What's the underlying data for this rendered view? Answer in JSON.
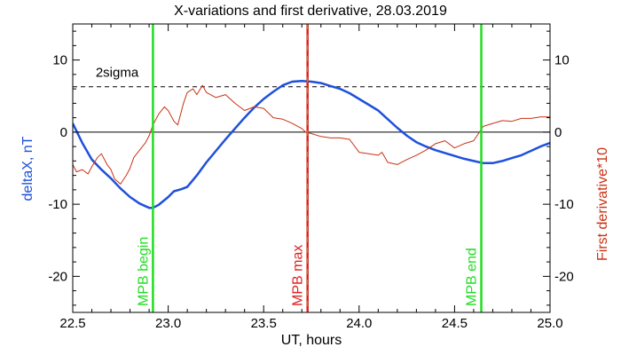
{
  "chart_data": {
    "type": "line",
    "title": "X-variations and first derivative, 28.03.2019",
    "xlabel": "UT, hours",
    "ylabel_left": "deltaX, nT",
    "ylabel_right": "First derivative*10",
    "xlim": [
      22.5,
      25.0
    ],
    "ylim": [
      -25,
      15
    ],
    "xticks": [
      "22.5",
      "23.0",
      "23.5",
      "24.0",
      "24.5",
      "25.0"
    ],
    "yticks_left": [
      "10",
      "0",
      "-10",
      "-20"
    ],
    "yticks_right": [
      "10",
      "0",
      "-10",
      "-20"
    ],
    "threshold": {
      "label": "2sigma",
      "value": 6.3
    },
    "zero_line": 0,
    "series": [
      {
        "color": "#1e50dc",
        "x": [
          22.5,
          22.55,
          22.6,
          22.65,
          22.7,
          22.75,
          22.8,
          22.85,
          22.9,
          22.92,
          22.95,
          23.0,
          23.03,
          23.07,
          23.1,
          23.15,
          23.2,
          23.25,
          23.3,
          23.35,
          23.4,
          23.45,
          23.5,
          23.55,
          23.6,
          23.65,
          23.7,
          23.75,
          23.8,
          23.85,
          23.9,
          23.95,
          24.0,
          24.05,
          24.1,
          24.15,
          24.2,
          24.25,
          24.3,
          24.35,
          24.4,
          24.45,
          24.5,
          24.55,
          24.6,
          24.65,
          24.7,
          24.75,
          24.8,
          24.85,
          24.9,
          24.95,
          25.0
        ],
        "values": [
          1.2,
          -1.5,
          -3.8,
          -5.2,
          -6.4,
          -7.8,
          -9.0,
          -9.9,
          -10.5,
          -10.5,
          -10.1,
          -9.0,
          -8.2,
          -7.9,
          -7.6,
          -6.0,
          -4.2,
          -2.6,
          -1.0,
          0.5,
          2.0,
          3.4,
          4.6,
          5.6,
          6.5,
          7.0,
          7.1,
          7.0,
          6.8,
          6.4,
          6.0,
          5.4,
          4.6,
          3.8,
          3.0,
          1.8,
          0.6,
          -0.5,
          -1.4,
          -2.0,
          -2.5,
          -2.9,
          -3.3,
          -3.7,
          -4.0,
          -4.3,
          -4.3,
          -4.0,
          -3.6,
          -3.2,
          -2.6,
          -2.0,
          -1.5
        ]
      },
      {
        "color": "#c83214",
        "x": [
          22.5,
          22.52,
          22.55,
          22.58,
          22.6,
          22.63,
          22.65,
          22.68,
          22.7,
          22.72,
          22.75,
          22.78,
          22.8,
          22.82,
          22.85,
          22.88,
          22.9,
          22.92,
          22.95,
          22.98,
          23.0,
          23.03,
          23.05,
          23.08,
          23.1,
          23.13,
          23.15,
          23.18,
          23.2,
          23.25,
          23.3,
          23.35,
          23.4,
          23.45,
          23.5,
          23.55,
          23.6,
          23.65,
          23.7,
          23.72,
          23.75,
          23.8,
          23.85,
          23.9,
          23.95,
          24.0,
          24.05,
          24.1,
          24.12,
          24.15,
          24.2,
          24.25,
          24.3,
          24.35,
          24.4,
          24.45,
          24.5,
          24.55,
          24.6,
          24.65,
          24.7,
          24.75,
          24.8,
          24.85,
          24.9,
          24.95,
          25.0
        ],
        "values": [
          -4.5,
          -5.5,
          -5.2,
          -5.8,
          -4.8,
          -3.5,
          -3.0,
          -4.5,
          -5.2,
          -6.5,
          -7.2,
          -6.0,
          -5.0,
          -3.5,
          -2.5,
          -1.5,
          -0.5,
          1.0,
          2.5,
          3.5,
          3.0,
          1.5,
          1.0,
          4.0,
          5.5,
          6.0,
          5.2,
          6.5,
          5.5,
          4.8,
          5.2,
          4.0,
          3.0,
          3.5,
          3.3,
          2.0,
          1.8,
          1.2,
          0.5,
          0.0,
          -0.2,
          -0.6,
          -0.8,
          -0.8,
          -1.0,
          -2.8,
          -3.0,
          -3.2,
          -2.8,
          -4.2,
          -4.5,
          -3.8,
          -3.2,
          -2.5,
          -1.6,
          -1.2,
          -2.2,
          -1.6,
          -1.2,
          0.8,
          1.2,
          1.6,
          1.5,
          1.9,
          1.9,
          2.1,
          2.1
        ]
      }
    ],
    "markers": [
      {
        "label": "MPB begin",
        "x": 22.92,
        "color": "#22dd22"
      },
      {
        "label": "MPB max",
        "x": 23.73,
        "color": "#dd2222"
      },
      {
        "label": "MPB end",
        "x": 24.64,
        "color": "#22dd22"
      }
    ],
    "grid": false
  }
}
